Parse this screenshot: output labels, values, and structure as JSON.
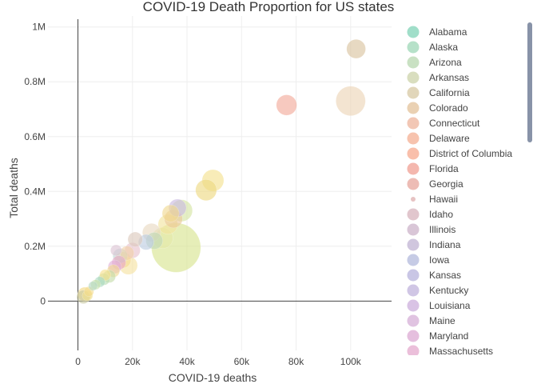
{
  "chart_data": {
    "type": "scatter",
    "title": "COVID-19 Death Proportion for US states",
    "xlabel": "COVID-19 deaths",
    "ylabel": "Total deaths",
    "xlim": [
      -11000,
      115000
    ],
    "ylim": [
      -180000,
      1040000
    ],
    "x_ticks": [
      0,
      20000,
      40000,
      60000,
      80000,
      100000
    ],
    "x_tick_labels": [
      "0",
      "20k",
      "40k",
      "60k",
      "80k",
      "100k"
    ],
    "y_ticks": [
      0,
      200000,
      400000,
      600000,
      800000,
      1000000
    ],
    "y_tick_labels": [
      "0",
      "0.2M",
      "0.4M",
      "0.6M",
      "0.8M",
      "1M"
    ],
    "grid": true,
    "legend_position": "right",
    "legend": [
      {
        "name": "Alabama",
        "color": "#8fd8c0"
      },
      {
        "name": "Alaska",
        "color": "#a9dcc0"
      },
      {
        "name": "Arizona",
        "color": "#bfdcb8"
      },
      {
        "name": "Arkansas",
        "color": "#d2d8b4"
      },
      {
        "name": "California",
        "color": "#dccfae"
      },
      {
        "name": "Colorado",
        "color": "#e6c9a6"
      },
      {
        "name": "Connecticut",
        "color": "#f0bda8"
      },
      {
        "name": "Delaware",
        "color": "#f6b8a0"
      },
      {
        "name": "District of Columbia",
        "color": "#f8b49c"
      },
      {
        "name": "Florida",
        "color": "#f2aaa0"
      },
      {
        "name": "Georgia",
        "color": "#eab0a8"
      },
      {
        "name": "Hawaii",
        "color": "#e3b8b8"
      },
      {
        "name": "Idaho",
        "color": "#dcbcc4"
      },
      {
        "name": "Illinois",
        "color": "#d2bcd0"
      },
      {
        "name": "Indiana",
        "color": "#c8bcd8"
      },
      {
        "name": "Iowa",
        "color": "#bcc2e0"
      },
      {
        "name": "Kansas",
        "color": "#c0bce0"
      },
      {
        "name": "Kentucky",
        "color": "#c8bce0"
      },
      {
        "name": "Louisiana",
        "color": "#d2b8e0"
      },
      {
        "name": "Maine",
        "color": "#dab8dc"
      },
      {
        "name": "Maryland",
        "color": "#e0b4d8"
      },
      {
        "name": "Massachusetts",
        "color": "#e8b4d4"
      }
    ],
    "points": [
      {
        "x": 102000,
        "y": 920000,
        "size": 0.27,
        "color": "#d8c29c"
      },
      {
        "x": 100000,
        "y": 730000,
        "size": 0.42,
        "color": "#ecd4b4"
      },
      {
        "x": 76500,
        "y": 715000,
        "size": 0.29,
        "color": "#f2a898"
      },
      {
        "x": 49500,
        "y": 440000,
        "size": 0.31,
        "color": "#f4e08c"
      },
      {
        "x": 47000,
        "y": 405000,
        "size": 0.3,
        "color": "#eed880"
      },
      {
        "x": 38000,
        "y": 330000,
        "size": 0.31,
        "color": "#d4e4a0"
      },
      {
        "x": 36500,
        "y": 340000,
        "size": 0.25,
        "color": "#c8b8e0"
      },
      {
        "x": 35000,
        "y": 300000,
        "size": 0.26,
        "color": "#eac898"
      },
      {
        "x": 34000,
        "y": 320000,
        "size": 0.24,
        "color": "#f0d890"
      },
      {
        "x": 33000,
        "y": 280000,
        "size": 0.28,
        "color": "#f2e49c"
      },
      {
        "x": 36000,
        "y": 195000,
        "size": 0.7,
        "color": "#d6e48c"
      },
      {
        "x": 31000,
        "y": 230000,
        "size": 0.3,
        "color": "#e4e8a8"
      },
      {
        "x": 27000,
        "y": 250000,
        "size": 0.26,
        "color": "#e8d8c0"
      },
      {
        "x": 28000,
        "y": 220000,
        "size": 0.24,
        "color": "#c0d8b8"
      },
      {
        "x": 25000,
        "y": 215000,
        "size": 0.22,
        "color": "#bccce0"
      },
      {
        "x": 21000,
        "y": 225000,
        "size": 0.21,
        "color": "#dcc8bc"
      },
      {
        "x": 20000,
        "y": 185000,
        "size": 0.22,
        "color": "#e6c0cc"
      },
      {
        "x": 18000,
        "y": 175000,
        "size": 0.2,
        "color": "#f2d0a8"
      },
      {
        "x": 16500,
        "y": 150000,
        "size": 0.23,
        "color": "#f4dc90"
      },
      {
        "x": 15500,
        "y": 165000,
        "size": 0.21,
        "color": "#bcd8d4"
      },
      {
        "x": 14000,
        "y": 185000,
        "size": 0.16,
        "color": "#dcc4d4"
      },
      {
        "x": 15000,
        "y": 140000,
        "size": 0.2,
        "color": "#e8a8c8"
      },
      {
        "x": 18500,
        "y": 130000,
        "size": 0.26,
        "color": "#f6e2a0"
      },
      {
        "x": 13500,
        "y": 125000,
        "size": 0.19,
        "color": "#e0b0d8"
      },
      {
        "x": 13000,
        "y": 110000,
        "size": 0.18,
        "color": "#f0d890"
      },
      {
        "x": 11500,
        "y": 90000,
        "size": 0.18,
        "color": "#c4dca8"
      },
      {
        "x": 10000,
        "y": 95000,
        "size": 0.16,
        "color": "#f8e08c"
      },
      {
        "x": 9500,
        "y": 80000,
        "size": 0.17,
        "color": "#b8dcb0"
      },
      {
        "x": 8000,
        "y": 70000,
        "size": 0.15,
        "color": "#a8d8c0"
      },
      {
        "x": 6500,
        "y": 60000,
        "size": 0.14,
        "color": "#c8e0a8"
      },
      {
        "x": 5500,
        "y": 55000,
        "size": 0.13,
        "color": "#b4d8c4"
      },
      {
        "x": 4000,
        "y": 35000,
        "size": 0.14,
        "color": "#f4dc8c"
      },
      {
        "x": 2500,
        "y": 25000,
        "size": 0.2,
        "color": "#f2d680"
      },
      {
        "x": 2000,
        "y": 15000,
        "size": 0.19,
        "color": "#c8c8a0"
      },
      {
        "x": 3500,
        "y": 20000,
        "size": 0.15,
        "color": "#f0e090"
      }
    ]
  }
}
